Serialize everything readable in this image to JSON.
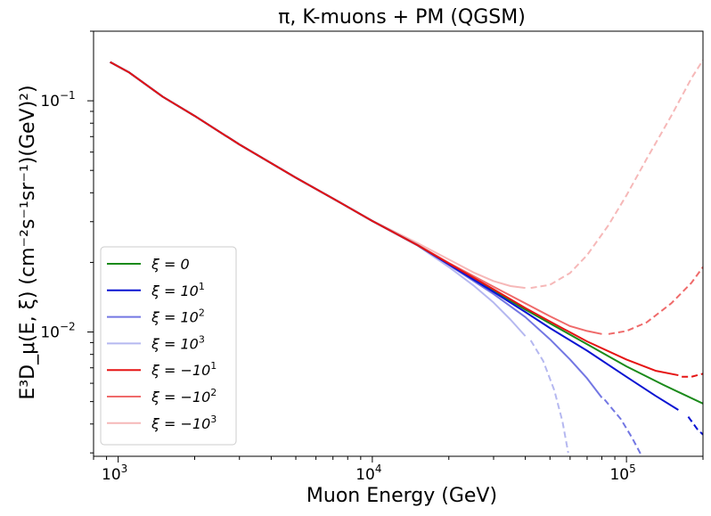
{
  "chart_data": {
    "type": "line",
    "title": "π, K-muons + PM (QGSM)",
    "xlabel": "Muon Energy (GeV)",
    "ylabel": "E³D_μ(E, ξ) (cm⁻²s⁻¹sr⁻¹)(GeV)²)",
    "xscale": "log",
    "yscale": "log",
    "xlim": [
      800,
      200000
    ],
    "ylim": [
      0.0029,
      0.2
    ],
    "x_ticks": [
      {
        "value": 1000,
        "base": "10",
        "exp": "3"
      },
      {
        "value": 10000,
        "base": "10",
        "exp": "4"
      },
      {
        "value": 100000,
        "base": "10",
        "exp": "5"
      }
    ],
    "y_ticks": [
      {
        "value": 0.01,
        "base": "10",
        "exp": "−2"
      },
      {
        "value": 0.1,
        "base": "10",
        "exp": "−1"
      }
    ],
    "legend_position": "lower-left",
    "series": [
      {
        "name": "ξ = 0",
        "label_base": "ξ = 0",
        "label_exp": "",
        "color": "#1a8a1a",
        "solid": [
          [
            930,
            0.147
          ],
          [
            1100,
            0.133
          ],
          [
            1500,
            0.104
          ],
          [
            2000,
            0.086
          ],
          [
            3000,
            0.0647
          ],
          [
            5000,
            0.0465
          ],
          [
            7000,
            0.0378
          ],
          [
            10000,
            0.0302
          ],
          [
            15000,
            0.0238
          ],
          [
            20000,
            0.0197
          ],
          [
            30000,
            0.0151
          ],
          [
            40000,
            0.0125
          ],
          [
            50000,
            0.0109
          ],
          [
            70000,
            0.00885
          ],
          [
            100000,
            0.0071
          ],
          [
            140000,
            0.0059
          ],
          [
            200000,
            0.0049
          ]
        ],
        "dashed": []
      },
      {
        "name": "ξ = 10¹",
        "label_base": "ξ = 10",
        "label_exp": "1",
        "color": "#0a14d2",
        "solid": [
          [
            930,
            0.147
          ],
          [
            1100,
            0.133
          ],
          [
            1500,
            0.104
          ],
          [
            2000,
            0.086
          ],
          [
            3000,
            0.0647
          ],
          [
            5000,
            0.0465
          ],
          [
            7000,
            0.0378
          ],
          [
            10000,
            0.0302
          ],
          [
            15000,
            0.0238
          ],
          [
            20000,
            0.0196
          ],
          [
            30000,
            0.0149
          ],
          [
            40000,
            0.0122
          ],
          [
            50000,
            0.0104
          ],
          [
            70000,
            0.0083
          ],
          [
            100000,
            0.0064
          ],
          [
            130000,
            0.0053
          ],
          [
            160000,
            0.0046
          ]
        ],
        "dashed": [
          [
            175000,
            0.0043
          ],
          [
            190000,
            0.0038
          ],
          [
            200000,
            0.0036
          ]
        ]
      },
      {
        "name": "ξ = 10²",
        "label_base": "ξ = 10",
        "label_exp": "2",
        "color": "#7377e3",
        "solid": [
          [
            930,
            0.147
          ],
          [
            1100,
            0.133
          ],
          [
            1500,
            0.104
          ],
          [
            2000,
            0.086
          ],
          [
            3000,
            0.0647
          ],
          [
            5000,
            0.0465
          ],
          [
            7000,
            0.0378
          ],
          [
            10000,
            0.0302
          ],
          [
            15000,
            0.0238
          ],
          [
            20000,
            0.0195
          ],
          [
            30000,
            0.0146
          ],
          [
            40000,
            0.0116
          ],
          [
            50000,
            0.0093
          ],
          [
            60000,
            0.0076
          ],
          [
            70000,
            0.0063
          ],
          [
            80000,
            0.0052
          ]
        ],
        "dashed": [
          [
            82000,
            0.0051
          ],
          [
            95000,
            0.0042
          ],
          [
            105000,
            0.0035
          ],
          [
            115000,
            0.0029
          ]
        ]
      },
      {
        "name": "ξ = 10³",
        "label_base": "ξ = 10",
        "label_exp": "3",
        "color": "#b5b8f0",
        "solid": [
          [
            930,
            0.147
          ],
          [
            1100,
            0.133
          ],
          [
            1500,
            0.104
          ],
          [
            2000,
            0.086
          ],
          [
            3000,
            0.0647
          ],
          [
            5000,
            0.0465
          ],
          [
            7000,
            0.0378
          ],
          [
            10000,
            0.0302
          ],
          [
            15000,
            0.0237
          ],
          [
            20000,
            0.0191
          ],
          [
            25000,
            0.0159
          ],
          [
            30000,
            0.0134
          ],
          [
            35000,
            0.0113
          ],
          [
            40000,
            0.0096
          ]
        ],
        "dashed": [
          [
            42000,
            0.0092
          ],
          [
            47000,
            0.0075
          ],
          [
            52000,
            0.0056
          ],
          [
            56000,
            0.0041
          ],
          [
            59000,
            0.003
          ]
        ]
      },
      {
        "name": "ξ = −10¹",
        "label_base": "ξ = −10",
        "label_exp": "1",
        "color": "#e51414",
        "solid": [
          [
            930,
            0.147
          ],
          [
            1100,
            0.133
          ],
          [
            1500,
            0.104
          ],
          [
            2000,
            0.086
          ],
          [
            3000,
            0.0647
          ],
          [
            5000,
            0.0465
          ],
          [
            7000,
            0.0378
          ],
          [
            10000,
            0.0302
          ],
          [
            15000,
            0.0238
          ],
          [
            20000,
            0.0198
          ],
          [
            30000,
            0.0153
          ],
          [
            40000,
            0.0127
          ],
          [
            50000,
            0.0111
          ],
          [
            70000,
            0.0091
          ],
          [
            100000,
            0.0076
          ],
          [
            130000,
            0.0068
          ],
          [
            160000,
            0.0065
          ]
        ],
        "dashed": [
          [
            165000,
            0.0064
          ],
          [
            180000,
            0.0064
          ],
          [
            200000,
            0.0066
          ]
        ]
      },
      {
        "name": "ξ = −10²",
        "label_base": "ξ = −10",
        "label_exp": "2",
        "color": "#ef6a6a",
        "solid": [
          [
            930,
            0.147
          ],
          [
            1100,
            0.133
          ],
          [
            1500,
            0.104
          ],
          [
            2000,
            0.086
          ],
          [
            3000,
            0.0647
          ],
          [
            5000,
            0.0465
          ],
          [
            7000,
            0.0378
          ],
          [
            10000,
            0.0302
          ],
          [
            15000,
            0.0239
          ],
          [
            20000,
            0.0199
          ],
          [
            30000,
            0.0157
          ],
          [
            40000,
            0.0133
          ],
          [
            50000,
            0.0117
          ],
          [
            60000,
            0.0106
          ],
          [
            70000,
            0.0101
          ],
          [
            80000,
            0.0098
          ]
        ],
        "dashed": [
          [
            85000,
            0.0098
          ],
          [
            100000,
            0.0101
          ],
          [
            120000,
            0.011
          ],
          [
            150000,
            0.0133
          ],
          [
            180000,
            0.0163
          ],
          [
            200000,
            0.0191
          ]
        ]
      },
      {
        "name": "ξ = −10³",
        "label_base": "ξ = −10",
        "label_exp": "3",
        "color": "#f6b8b8",
        "solid": [
          [
            930,
            0.147
          ],
          [
            1100,
            0.133
          ],
          [
            1500,
            0.104
          ],
          [
            2000,
            0.086
          ],
          [
            3000,
            0.0647
          ],
          [
            5000,
            0.0465
          ],
          [
            7000,
            0.0378
          ],
          [
            10000,
            0.0303
          ],
          [
            15000,
            0.0243
          ],
          [
            20000,
            0.0206
          ],
          [
            25000,
            0.0181
          ],
          [
            30000,
            0.0166
          ],
          [
            35000,
            0.0158
          ],
          [
            40000,
            0.0155
          ]
        ],
        "dashed": [
          [
            42000,
            0.0155
          ],
          [
            50000,
            0.016
          ],
          [
            60000,
            0.018
          ],
          [
            70000,
            0.0215
          ],
          [
            85000,
            0.029
          ],
          [
            100000,
            0.039
          ],
          [
            120000,
            0.056
          ],
          [
            150000,
            0.086
          ],
          [
            180000,
            0.125
          ],
          [
            200000,
            0.15
          ]
        ]
      }
    ]
  }
}
